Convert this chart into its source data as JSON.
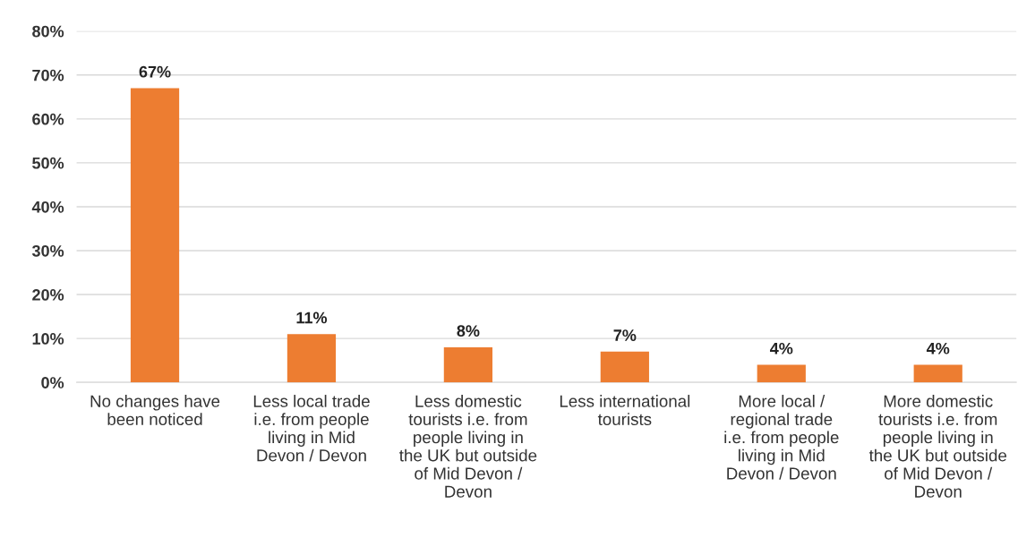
{
  "chart_data": {
    "type": "bar",
    "categories": [
      "No changes have been noticed",
      "Less local trade i.e. from people living in Mid Devon / Devon",
      "Less domestic tourists i.e. from people living in the UK but outside of Mid Devon / Devon",
      "Less international tourists",
      "More local / regional trade i.e. from people living in Mid Devon / Devon",
      "More domestic tourists i.e. from people living in the UK but outside of Mid Devon / Devon"
    ],
    "values": [
      67,
      11,
      8,
      7,
      4,
      4
    ],
    "value_labels": [
      "67%",
      "11%",
      "8%",
      "7%",
      "4%",
      "4%"
    ],
    "color": "#ed7d31",
    "ylim": [
      0,
      80
    ],
    "yticks": [
      {
        "value": 0,
        "label": "0%"
      },
      {
        "value": 10,
        "label": "10%"
      },
      {
        "value": 20,
        "label": "20%"
      },
      {
        "value": 30,
        "label": "30%"
      },
      {
        "value": 40,
        "label": "40%"
      },
      {
        "value": 50,
        "label": "50%"
      },
      {
        "value": 60,
        "label": "60%"
      },
      {
        "value": 70,
        "label": "70%"
      },
      {
        "value": 80,
        "label": "80%"
      }
    ],
    "grid": "y",
    "legend": false
  }
}
